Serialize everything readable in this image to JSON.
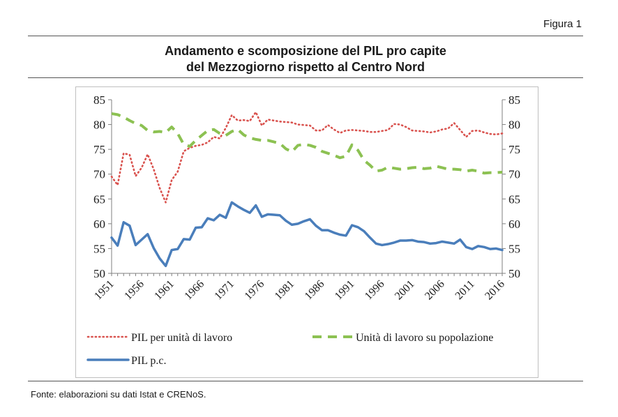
{
  "figure_label": "Figura 1",
  "title_lines": [
    "Andamento e scomposizione del PIL pro capite",
    "del Mezzogiorno rispetto al Centro Nord"
  ],
  "source": "Fonte: elaborazioni su dati Istat e CRENoS.",
  "chart_data": {
    "type": "line",
    "title": "Andamento e scomposizione del PIL pro capite del Mezzogiorno rispetto al Centro Nord",
    "x_start": 1951,
    "x_end": 2016,
    "x_tick_labels": [
      "1951",
      "1956",
      "1961",
      "1966",
      "1971",
      "1976",
      "1981",
      "1986",
      "1991",
      "1996",
      "2001",
      "2006",
      "2011",
      "2016"
    ],
    "ylim": [
      50,
      85
    ],
    "y_ticks": [
      50,
      55,
      60,
      65,
      70,
      75,
      80,
      85
    ],
    "y_tick_labels": [
      "50",
      "55",
      "60",
      "65",
      "70",
      "75",
      "80",
      "85"
    ],
    "y2lim": [
      50,
      85
    ],
    "grid": false,
    "legend_position": "bottom",
    "series": [
      {
        "name": "PIL per unità di lavoro",
        "style": "dotted",
        "color": "#d9534f",
        "values": [
          69.5,
          67.8,
          74.2,
          73.9,
          69.6,
          71.3,
          74.0,
          71.0,
          67.2,
          64.3,
          68.8,
          70.5,
          74.6,
          75.3,
          75.7,
          75.9,
          76.4,
          77.5,
          77.2,
          79.3,
          81.9,
          80.8,
          80.9,
          80.7,
          82.5,
          79.8,
          81.0,
          80.8,
          80.6,
          80.5,
          80.4,
          80.0,
          79.9,
          79.8,
          78.8,
          78.8,
          79.9,
          79.0,
          78.3,
          78.8,
          78.9,
          78.8,
          78.7,
          78.5,
          78.5,
          78.7,
          78.9,
          80.1,
          80.0,
          79.5,
          78.8,
          78.7,
          78.6,
          78.4,
          78.6,
          79.0,
          79.2,
          80.3,
          78.9,
          77.5,
          78.7,
          78.8,
          78.4,
          78.1,
          78.0,
          78.2
        ]
      },
      {
        "name": "Unità di lavoro su popolazione",
        "style": "dashed",
        "color": "#8cc152",
        "values": [
          82.2,
          82.0,
          81.5,
          80.8,
          80.2,
          79.8,
          78.8,
          78.5,
          78.6,
          78.4,
          79.5,
          78.2,
          76.0,
          75.6,
          76.8,
          77.8,
          78.8,
          79.0,
          78.2,
          77.8,
          78.6,
          79.0,
          77.9,
          77.3,
          77.0,
          76.8,
          76.8,
          76.5,
          76.2,
          75.1,
          74.5,
          75.8,
          76.0,
          75.8,
          75.4,
          74.6,
          74.2,
          73.8,
          73.3,
          73.6,
          75.9,
          74.8,
          72.8,
          71.8,
          70.6,
          70.8,
          71.4,
          71.2,
          71.0,
          71.1,
          71.3,
          71.4,
          71.1,
          71.2,
          71.6,
          71.3,
          71.0,
          71.0,
          70.9,
          70.6,
          70.8,
          70.6,
          70.2,
          70.3,
          70.3,
          70.4
        ]
      },
      {
        "name": "PIL p.c.",
        "style": "solid",
        "color": "#4a7ebb",
        "values": [
          57.2,
          55.6,
          60.3,
          59.6,
          55.7,
          56.8,
          57.9,
          55.1,
          53.0,
          51.5,
          54.7,
          54.9,
          56.9,
          56.8,
          59.2,
          59.3,
          61.1,
          60.7,
          61.8,
          61.2,
          64.3,
          63.5,
          62.8,
          62.2,
          63.7,
          61.4,
          61.9,
          61.8,
          61.7,
          60.6,
          59.8,
          60.0,
          60.5,
          60.9,
          59.6,
          58.7,
          58.7,
          58.2,
          57.8,
          57.6,
          59.7,
          59.3,
          58.5,
          57.2,
          56.0,
          55.7,
          55.9,
          56.2,
          56.6,
          56.6,
          56.7,
          56.4,
          56.3,
          56.0,
          56.1,
          56.4,
          56.2,
          56.0,
          56.8,
          55.3,
          54.9,
          55.5,
          55.3,
          54.9,
          55.0,
          54.7
        ]
      }
    ]
  }
}
